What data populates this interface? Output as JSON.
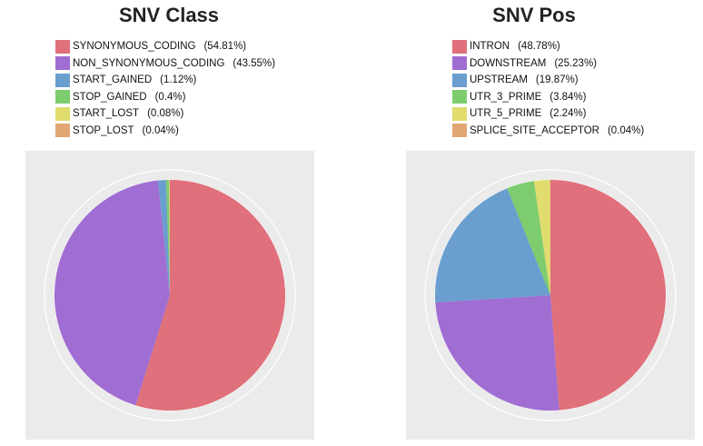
{
  "chart_data": [
    {
      "type": "pie",
      "title": "SNV Class",
      "legend_placement": "top",
      "grid": true,
      "slices": [
        {
          "label": "SYNONYMOUS_CODING",
          "pct_label": "(54.81%)",
          "value": 54.81,
          "color": "#e0707b"
        },
        {
          "label": "NON_SYNONYMOUS_CODING",
          "pct_label": "(43.55%)",
          "value": 43.55,
          "color": "#a06dd3"
        },
        {
          "label": "START_GAINED",
          "pct_label": "(1.12%)",
          "value": 1.12,
          "color": "#6a9ecf"
        },
        {
          "label": "STOP_GAINED",
          "pct_label": "(0.4%)",
          "value": 0.4,
          "color": "#7dcc6d"
        },
        {
          "label": "START_LOST",
          "pct_label": "(0.08%)",
          "value": 0.08,
          "color": "#e0dc6e"
        },
        {
          "label": "STOP_LOST",
          "pct_label": "(0.04%)",
          "value": 0.04,
          "color": "#e2a674"
        }
      ]
    },
    {
      "type": "pie",
      "title": "SNV Pos",
      "legend_placement": "top",
      "grid": true,
      "slices": [
        {
          "label": "INTRON",
          "pct_label": "(48.78%)",
          "value": 48.78,
          "color": "#e0707b"
        },
        {
          "label": "DOWNSTREAM",
          "pct_label": "(25.23%)",
          "value": 25.23,
          "color": "#a06dd3"
        },
        {
          "label": "UPSTREAM",
          "pct_label": "(19.87%)",
          "value": 19.87,
          "color": "#6a9ecf"
        },
        {
          "label": "UTR_3_PRIME",
          "pct_label": "(3.84%)",
          "value": 3.84,
          "color": "#7dcc6d"
        },
        {
          "label": "UTR_5_PRIME",
          "pct_label": "(2.24%)",
          "value": 2.24,
          "color": "#e0dc6e"
        },
        {
          "label": "SPLICE_SITE_ACCEPTOR",
          "pct_label": "(0.04%)",
          "value": 0.04,
          "color": "#e2a674"
        }
      ]
    }
  ]
}
